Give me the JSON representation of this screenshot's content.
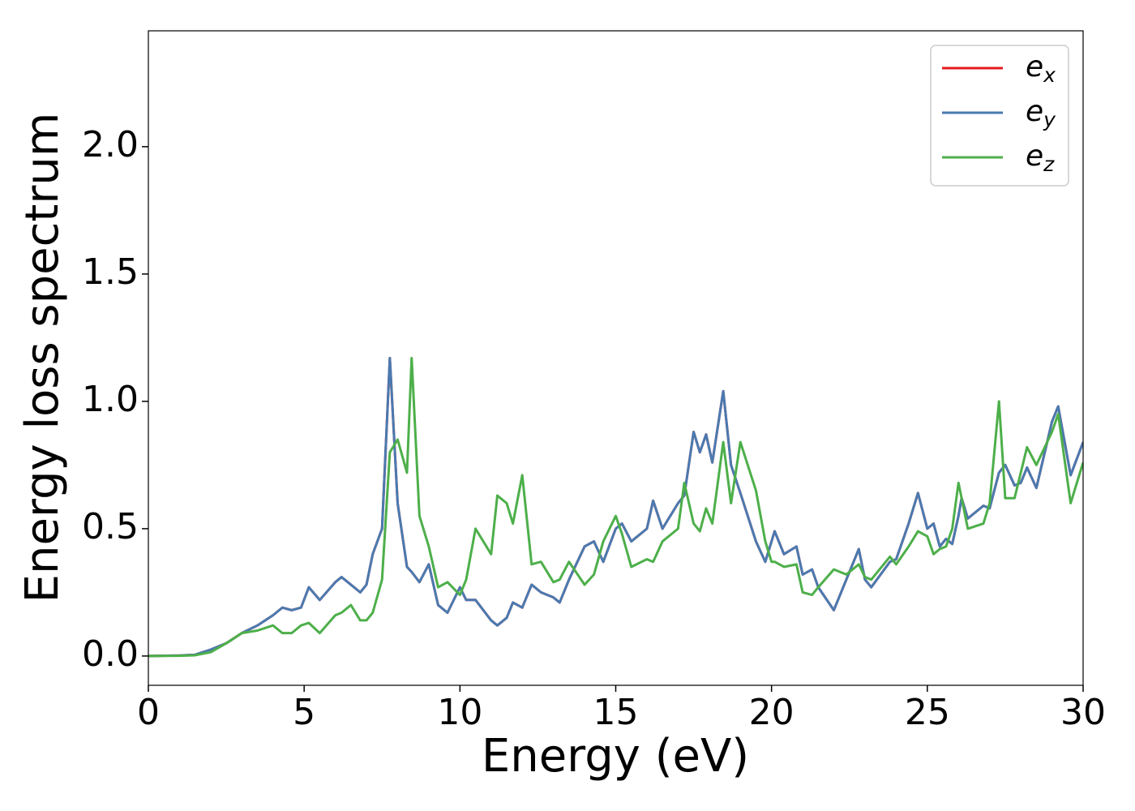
{
  "chart_data": {
    "type": "line",
    "xlabel": "Energy (eV)",
    "ylabel": "Energy loss spectrum",
    "x": [
      0,
      1,
      1.5,
      2,
      2.5,
      3,
      3.5,
      4,
      4.3,
      4.6,
      4.9,
      5.15,
      5.5,
      6,
      6.2,
      6.5,
      6.8,
      7,
      7.2,
      7.5,
      7.75,
      8,
      8.3,
      8.45,
      8.7,
      9,
      9.3,
      9.6,
      10,
      10.2,
      10.5,
      11,
      11.2,
      11.5,
      11.7,
      12,
      12.3,
      12.6,
      13,
      13.2,
      13.5,
      14,
      14.3,
      14.6,
      15,
      15.2,
      15.5,
      16,
      16.2,
      16.5,
      17,
      17.2,
      17.5,
      17.7,
      17.9,
      18.1,
      18.45,
      18.7,
      19,
      19.5,
      19.8,
      20,
      20.1,
      20.4,
      20.8,
      21,
      21.3,
      21.5,
      22,
      22.4,
      22.8,
      23,
      23.2,
      23.8,
      24,
      24.4,
      24.7,
      25,
      25.2,
      25.4,
      25.6,
      25.8,
      26,
      26.1,
      26.3,
      26.8,
      27,
      27.3,
      27.5,
      27.8,
      28,
      28.2,
      28.5,
      29,
      29.2,
      29.6,
      30
    ],
    "series": [
      {
        "name": "e_x",
        "color": "#e41a1c",
        "values": [
          0,
          0.002,
          0.005,
          0.025,
          0.05,
          0.09,
          0.12,
          0.16,
          0.19,
          0.18,
          0.19,
          0.27,
          0.22,
          0.29,
          0.31,
          0.28,
          0.25,
          0.28,
          0.4,
          0.5,
          1.17,
          0.6,
          0.35,
          0.33,
          0.29,
          0.36,
          0.2,
          0.17,
          0.27,
          0.22,
          0.22,
          0.14,
          0.12,
          0.15,
          0.21,
          0.19,
          0.28,
          0.25,
          0.23,
          0.21,
          0.3,
          0.43,
          0.45,
          0.37,
          0.5,
          0.52,
          0.45,
          0.5,
          0.61,
          0.5,
          0.6,
          0.63,
          0.88,
          0.8,
          0.87,
          0.76,
          1.04,
          0.75,
          0.64,
          0.45,
          0.37,
          0.45,
          0.49,
          0.4,
          0.43,
          0.32,
          0.34,
          0.27,
          0.18,
          0.3,
          0.42,
          0.3,
          0.27,
          0.37,
          0.38,
          0.52,
          0.64,
          0.5,
          0.52,
          0.43,
          0.46,
          0.44,
          0.55,
          0.62,
          0.54,
          0.59,
          0.58,
          0.72,
          0.75,
          0.67,
          0.68,
          0.74,
          0.66,
          0.92,
          0.98,
          0.71,
          0.84
        ]
      },
      {
        "name": "e_y",
        "color": "#4a7ab0",
        "values": [
          0,
          0.002,
          0.005,
          0.025,
          0.05,
          0.09,
          0.12,
          0.16,
          0.19,
          0.18,
          0.19,
          0.27,
          0.22,
          0.29,
          0.31,
          0.28,
          0.25,
          0.28,
          0.4,
          0.5,
          1.17,
          0.6,
          0.35,
          0.33,
          0.29,
          0.36,
          0.2,
          0.17,
          0.27,
          0.22,
          0.22,
          0.14,
          0.12,
          0.15,
          0.21,
          0.19,
          0.28,
          0.25,
          0.23,
          0.21,
          0.3,
          0.43,
          0.45,
          0.37,
          0.5,
          0.52,
          0.45,
          0.5,
          0.61,
          0.5,
          0.6,
          0.63,
          0.88,
          0.8,
          0.87,
          0.76,
          1.04,
          0.75,
          0.64,
          0.45,
          0.37,
          0.45,
          0.49,
          0.4,
          0.43,
          0.32,
          0.34,
          0.27,
          0.18,
          0.3,
          0.42,
          0.3,
          0.27,
          0.37,
          0.38,
          0.52,
          0.64,
          0.5,
          0.52,
          0.43,
          0.46,
          0.44,
          0.55,
          0.62,
          0.54,
          0.59,
          0.58,
          0.72,
          0.75,
          0.67,
          0.68,
          0.74,
          0.66,
          0.92,
          0.98,
          0.71,
          0.84
        ]
      },
      {
        "name": "e_z",
        "color": "#4daf4a",
        "values": [
          0,
          0.001,
          0.003,
          0.015,
          0.05,
          0.09,
          0.1,
          0.12,
          0.09,
          0.09,
          0.12,
          0.13,
          0.09,
          0.16,
          0.17,
          0.2,
          0.14,
          0.14,
          0.17,
          0.3,
          0.8,
          0.85,
          0.72,
          1.17,
          0.55,
          0.43,
          0.27,
          0.29,
          0.24,
          0.3,
          0.5,
          0.4,
          0.63,
          0.6,
          0.52,
          0.71,
          0.36,
          0.37,
          0.29,
          0.3,
          0.37,
          0.28,
          0.32,
          0.45,
          0.55,
          0.48,
          0.35,
          0.38,
          0.37,
          0.45,
          0.5,
          0.68,
          0.52,
          0.49,
          0.58,
          0.52,
          0.84,
          0.6,
          0.84,
          0.65,
          0.45,
          0.37,
          0.37,
          0.35,
          0.36,
          0.25,
          0.24,
          0.27,
          0.34,
          0.32,
          0.36,
          0.31,
          0.3,
          0.39,
          0.36,
          0.43,
          0.49,
          0.47,
          0.4,
          0.42,
          0.43,
          0.5,
          0.68,
          0.62,
          0.5,
          0.52,
          0.6,
          1.0,
          0.62,
          0.62,
          0.72,
          0.82,
          0.75,
          0.88,
          0.95,
          0.6,
          0.76
        ]
      }
    ],
    "xlim": [
      0,
      30
    ],
    "xticks": [
      0,
      5,
      10,
      15,
      20,
      25,
      30
    ],
    "ylim": [
      -0.115,
      2.455
    ],
    "yticks": [
      {
        "value": 0,
        "label": "0.0"
      },
      0.5,
      {
        "value": 1,
        "label": "1.0"
      },
      1.5,
      {
        "value": 2,
        "label": "2.0"
      }
    ],
    "legend": "upper right",
    "grid": false
  }
}
